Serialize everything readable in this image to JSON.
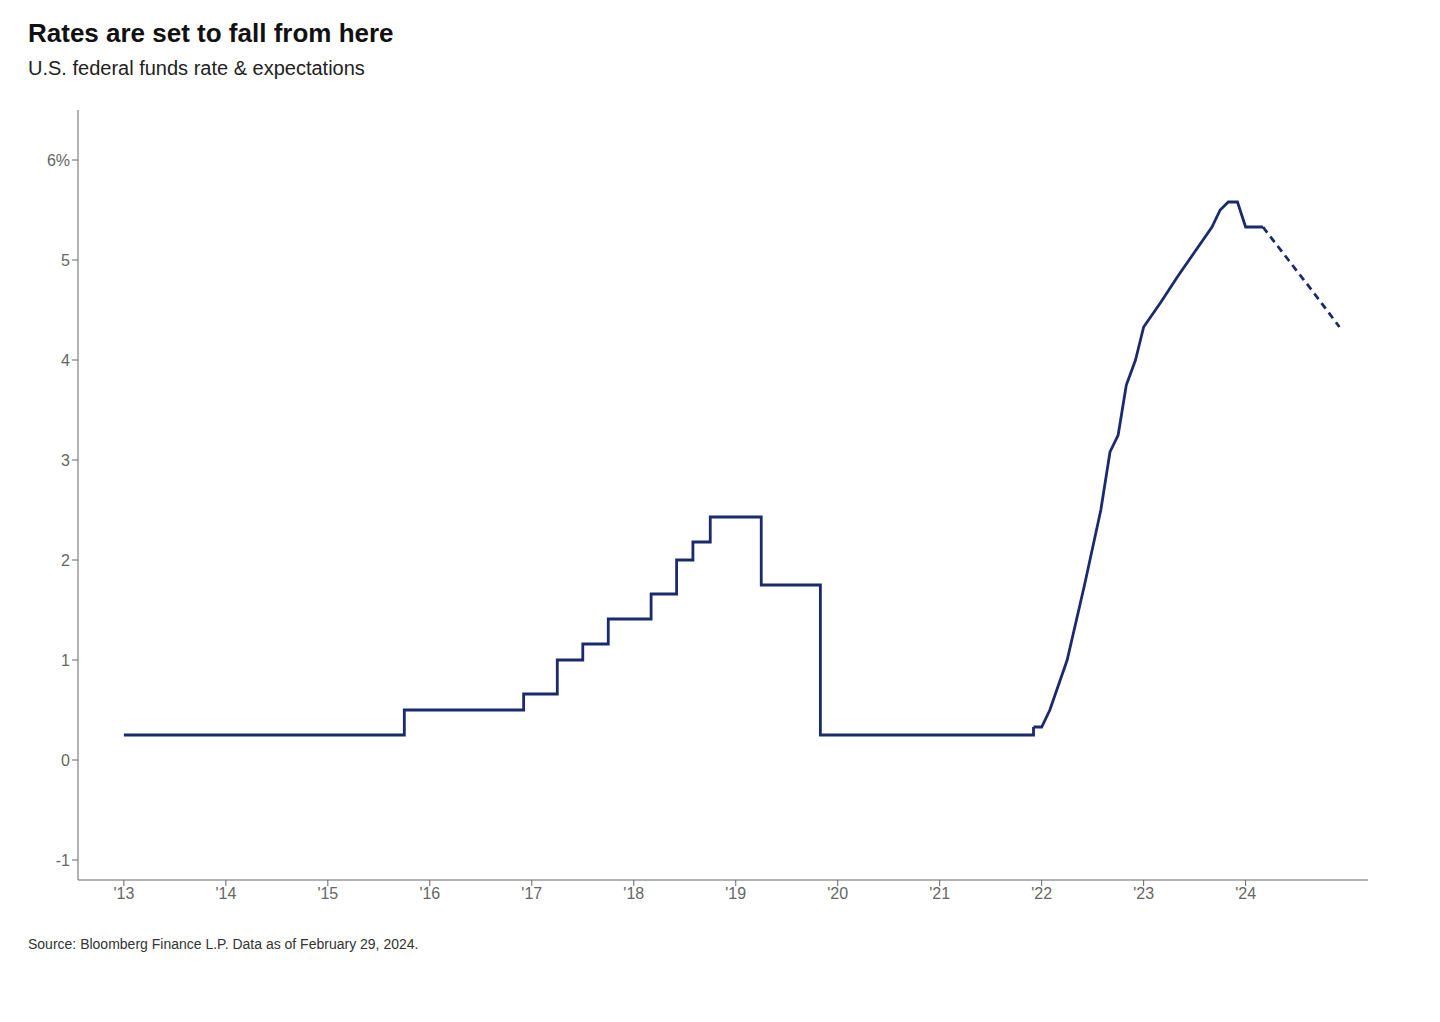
{
  "chart_data": {
    "type": "line",
    "title": "Rates are set to fall from here",
    "subtitle": "U.S. federal funds rate & expectations",
    "annotations": [
      "Source: Bloomberg Finance L.P. Data as of February 29, 2024."
    ],
    "grid": false,
    "xlim": [
      2012.55,
      2025.2
    ],
    "ylim": [
      -1.2,
      6.5
    ],
    "xticks": [
      {
        "value": 2013,
        "label": "'13"
      },
      {
        "value": 2014,
        "label": "'14"
      },
      {
        "value": 2015,
        "label": "'15"
      },
      {
        "value": 2016,
        "label": "'16"
      },
      {
        "value": 2017,
        "label": "'17"
      },
      {
        "value": 2018,
        "label": "'18"
      },
      {
        "value": 2019,
        "label": "'19"
      },
      {
        "value": 2020,
        "label": "'20"
      },
      {
        "value": 2021,
        "label": "'21"
      },
      {
        "value": 2022,
        "label": "'22"
      },
      {
        "value": 2023,
        "label": "'23"
      },
      {
        "value": 2024,
        "label": "'24"
      }
    ],
    "yticks": [
      -1,
      0,
      1,
      2,
      3,
      4,
      5,
      {
        "value": 6,
        "label": "6%"
      }
    ],
    "series": [
      {
        "type": "step",
        "line_style": "solid",
        "color": "#1a2a6c",
        "x": [
          2013.0,
          2013.5,
          2014.0,
          2014.5,
          2015.0,
          2015.75,
          2015.92,
          2016.0,
          2016.5,
          2016.92,
          2017.0,
          2017.25,
          2017.5,
          2017.75,
          2017.92,
          2018.0,
          2018.17,
          2018.42,
          2018.58,
          2018.75,
          2018.92,
          2019.0,
          2019.25,
          2019.5,
          2019.67,
          2019.75,
          2019.83,
          2019.92,
          2020.0,
          2020.17,
          2020.25,
          2020.33,
          2020.5,
          2021.0,
          2021.5,
          2021.75,
          2021.83,
          2021.92
        ],
        "values": [
          0.25,
          0.25,
          0.25,
          0.25,
          0.25,
          0.5,
          0.5,
          0.5,
          0.5,
          0.66,
          0.66,
          1.0,
          1.16,
          1.41,
          1.41,
          1.41,
          1.66,
          2.0,
          2.18,
          2.43,
          2.43,
          2.43,
          1.75,
          1.75,
          1.75,
          1.75,
          0.25,
          0.25,
          0.25,
          0.25,
          0.25,
          0.25,
          0.25,
          0.25,
          0.25,
          0.25,
          0.25,
          0.33
        ]
      },
      {
        "type": "line",
        "line_style": "solid",
        "color": "#1a2a6c",
        "x": [
          2021.92,
          2022.0,
          2022.08,
          2022.25,
          2022.42,
          2022.58,
          2022.67,
          2022.75,
          2022.83,
          2022.92,
          2023.0,
          2023.17,
          2023.33,
          2023.5,
          2023.67,
          2023.75,
          2023.83,
          2023.92,
          2024.0,
          2024.17
        ],
        "values": [
          0.33,
          0.33,
          0.5,
          1.0,
          1.75,
          2.5,
          3.08,
          3.25,
          3.75,
          4.0,
          4.33,
          4.58,
          4.83,
          5.08,
          5.33,
          5.5,
          5.58,
          5.58,
          5.33,
          5.33
        ]
      },
      {
        "type": "line",
        "line_style": "dashed",
        "color": "#1a2a6c",
        "x": [
          2024.17,
          2024.42,
          2024.67,
          2024.92
        ],
        "values": [
          5.33,
          5.0,
          4.67,
          4.33
        ]
      }
    ]
  }
}
